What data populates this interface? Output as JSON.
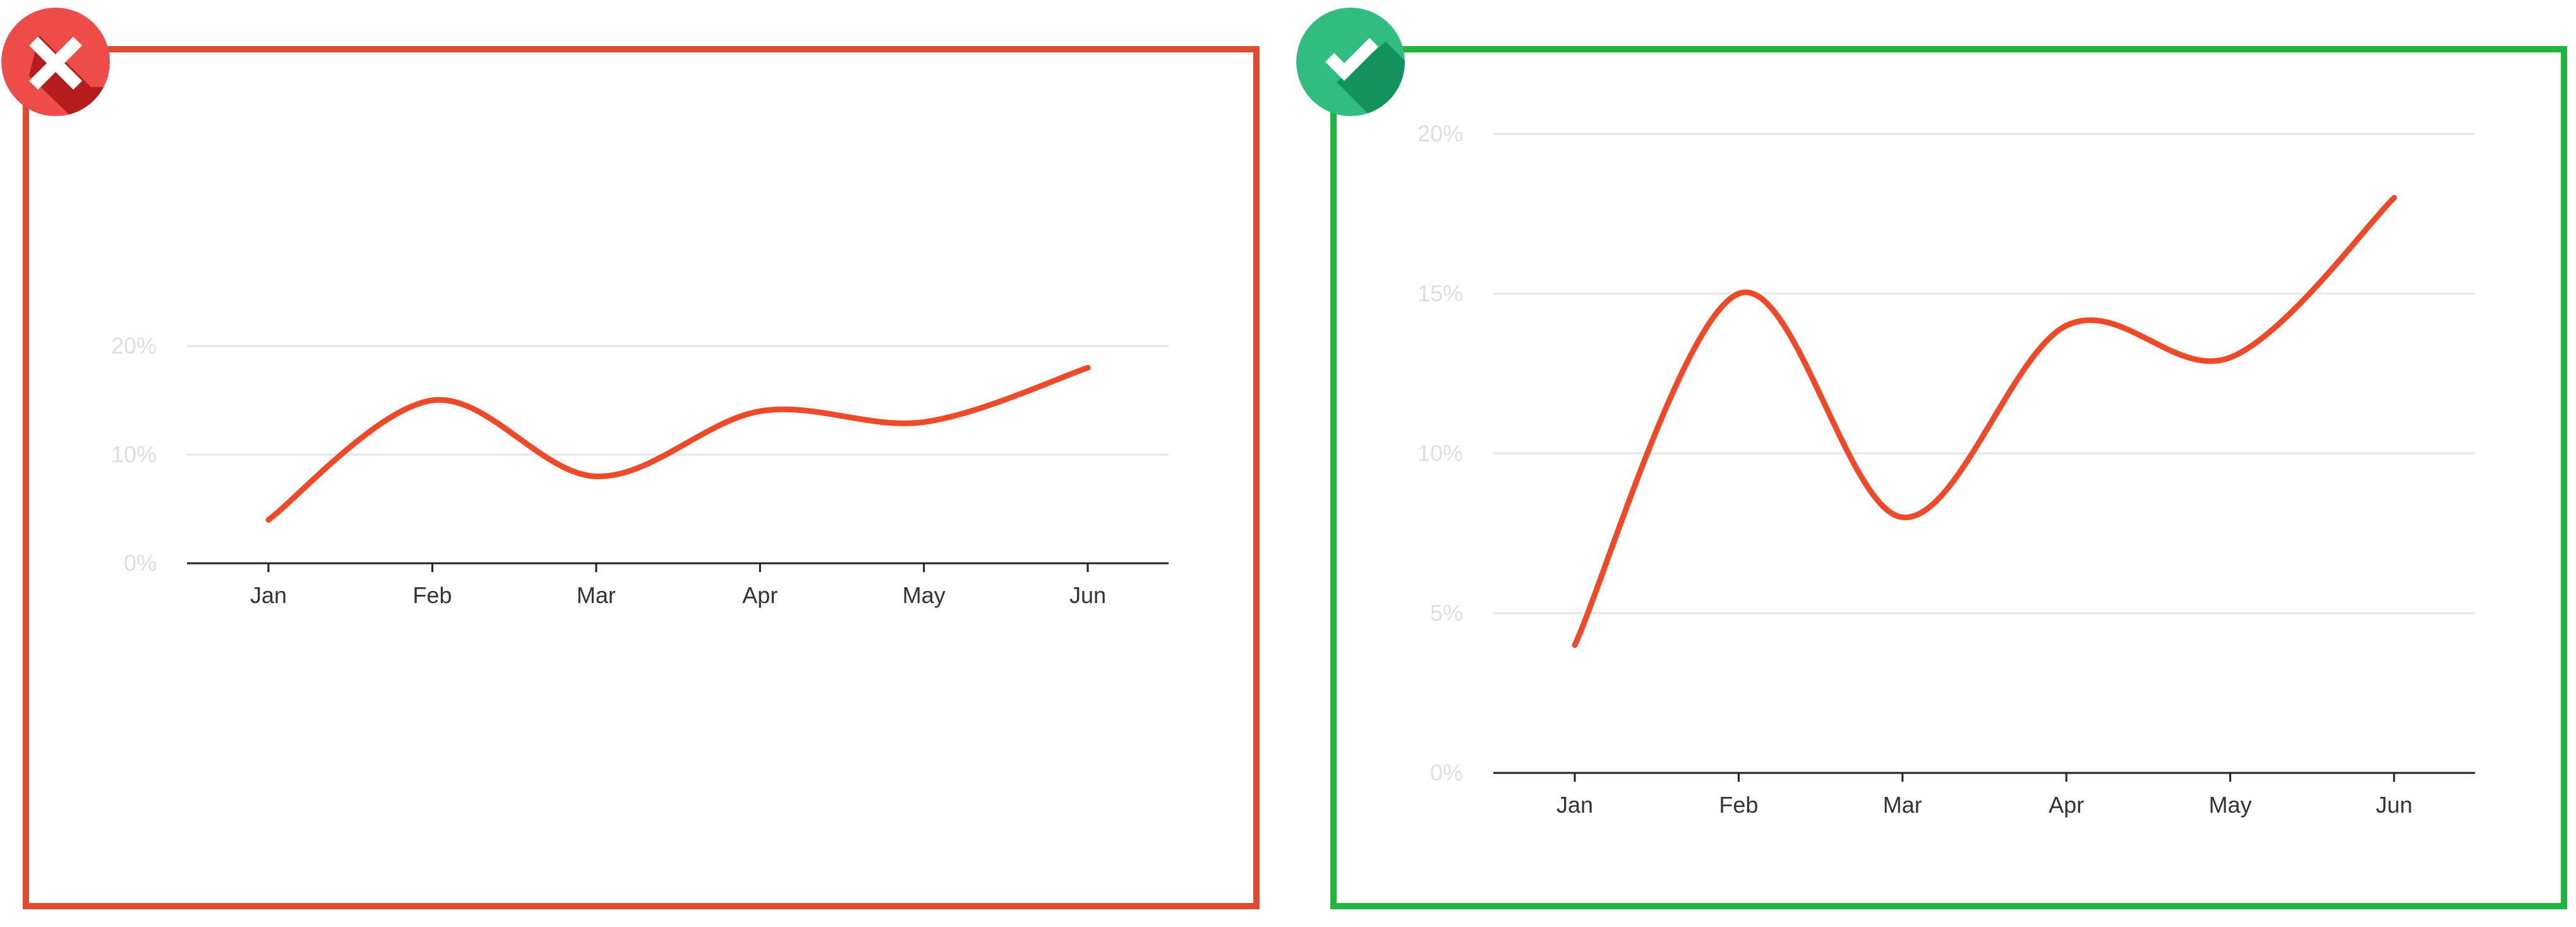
{
  "colors": {
    "bad_border": "#e04a2e",
    "good_border": "#1fb53e",
    "bad_badge": "#ee4c48",
    "bad_badge_shadow": "#b51c1c",
    "good_badge": "#31bd7f",
    "good_badge_shadow": "#14925d",
    "line": "#ee4a2a",
    "axis": "#222222",
    "grid": "#e6e6e6",
    "y_tick_label": "#dedede",
    "x_tick_label": "#333333"
  },
  "badges": {
    "bad_icon": "cross-icon",
    "good_icon": "checkmark-icon"
  },
  "chart_data": [
    {
      "type": "line",
      "variant": "incorrect",
      "title": "",
      "xlabel": "",
      "ylabel": "",
      "categories": [
        "Jan",
        "Feb",
        "Mar",
        "Apr",
        "May",
        "Jun"
      ],
      "series": [
        {
          "values": [
            4,
            15,
            8,
            14,
            13,
            18
          ]
        }
      ],
      "ylim": [
        0,
        20
      ],
      "y_ticks": [
        0,
        10,
        20
      ],
      "y_tick_labels": [
        "0%",
        "10%",
        "20%"
      ],
      "curve": "smooth",
      "grid": true,
      "legend": "none"
    },
    {
      "type": "line",
      "variant": "correct",
      "title": "",
      "xlabel": "",
      "ylabel": "",
      "categories": [
        "Jan",
        "Feb",
        "Mar",
        "Apr",
        "May",
        "Jun"
      ],
      "series": [
        {
          "values": [
            4,
            15,
            8,
            14,
            13,
            18
          ]
        }
      ],
      "ylim": [
        0,
        20
      ],
      "y_ticks": [
        0,
        5,
        10,
        15,
        20
      ],
      "y_tick_labels": [
        "0%",
        "5%",
        "10%",
        "15%",
        "20%"
      ],
      "curve": "smooth",
      "grid": true,
      "legend": "none"
    }
  ]
}
